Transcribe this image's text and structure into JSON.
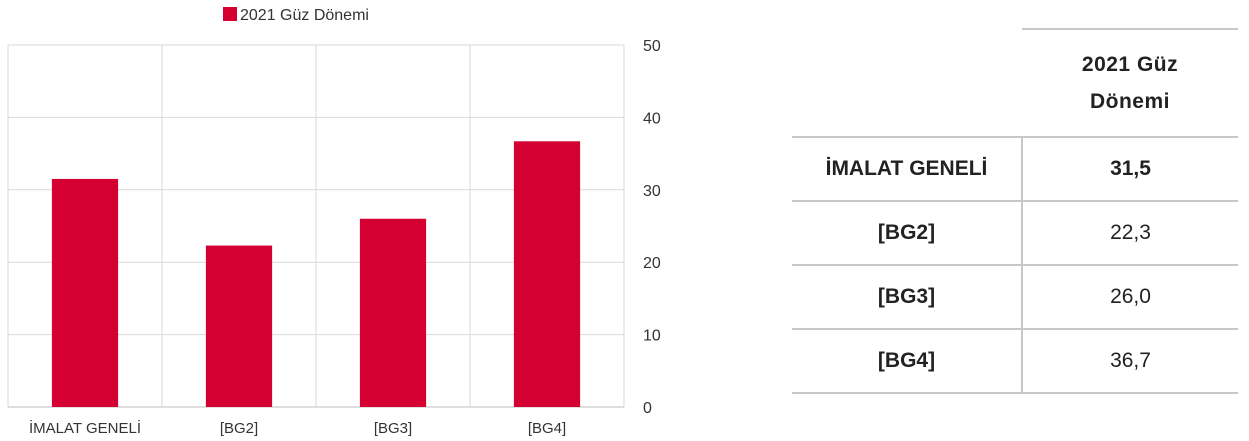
{
  "chart_data": {
    "type": "bar",
    "categories": [
      "İMALAT GENELİ",
      "[BG2]",
      "[BG3]",
      "[BG4]"
    ],
    "series": [
      {
        "name": "2021 Güz Dönemi",
        "values": [
          31.5,
          22.3,
          26.0,
          36.7
        ]
      }
    ],
    "ylim": [
      0,
      50
    ],
    "yticks": [
      0,
      10,
      20,
      30,
      40,
      50
    ],
    "y_axis_side": "right",
    "legend_position": "top",
    "grid": true,
    "bar_color": "#d40032",
    "gridline_color": "#d9d9d9"
  },
  "table": {
    "header": [
      "2021 Güz",
      "Dönemi"
    ],
    "rows": [
      {
        "label": "İMALAT GENELİ",
        "value": "31,5",
        "bold": true
      },
      {
        "label": "[BG2]",
        "value": "22,3",
        "bold": false
      },
      {
        "label": "[BG3]",
        "value": "26,0",
        "bold": false
      },
      {
        "label": "[BG4]",
        "value": "36,7",
        "bold": false
      }
    ]
  }
}
